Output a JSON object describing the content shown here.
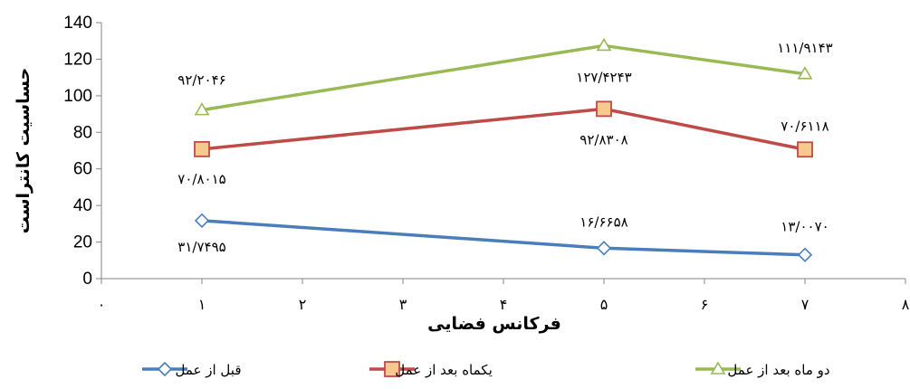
{
  "chart_data": {
    "type": "line",
    "xlabel": "فرکانس فضایی",
    "ylabel": "حساسیت کانتراست",
    "xlim": [
      0,
      8
    ],
    "ylim": [
      0,
      140
    ],
    "x_ticks": [
      0,
      1,
      2,
      3,
      4,
      5,
      6,
      7,
      8
    ],
    "x_tick_labels": [
      "۰",
      "۱",
      "۲",
      "۳",
      "۴",
      "۵",
      "۶",
      "۷",
      "۸"
    ],
    "y_ticks": [
      0,
      20,
      40,
      60,
      80,
      100,
      120,
      140
    ],
    "y_tick_labels": [
      "0",
      "20",
      "40",
      "60",
      "80",
      "100",
      "120",
      "140"
    ],
    "grid": false,
    "legend_position": "bottom",
    "series": [
      {
        "name": "قبل از عمل",
        "color": "#4a7ebb",
        "marker": "diamond",
        "x": [
          1,
          5,
          7
        ],
        "values": [
          31.7495,
          16.6658,
          13.007
        ],
        "point_labels": [
          "۳۱/۷۴۹۵",
          "۱۶/۶۶۵۸",
          "۱۳/۰۰۷۰"
        ]
      },
      {
        "name": "یکماه بعد از عمل",
        "color": "#be4b48",
        "marker": "square",
        "x": [
          1,
          5,
          7
        ],
        "values": [
          70.8015,
          92.8308,
          70.6118
        ],
        "point_labels": [
          "۷۰/۸۰۱۵",
          "۹۲/۸۳۰۸",
          "۷۰/۶۱۱۸"
        ]
      },
      {
        "name": "دو ماه بعد از عمل",
        "color": "#98b954",
        "marker": "triangle",
        "x": [
          1,
          5,
          7
        ],
        "values": [
          92.2046,
          127.4243,
          111.9143
        ],
        "point_labels": [
          "۹۲/۲۰۴۶",
          "۱۲۷/۴۲۴۳",
          "۱۱۱/۹۱۴۳"
        ]
      }
    ]
  }
}
